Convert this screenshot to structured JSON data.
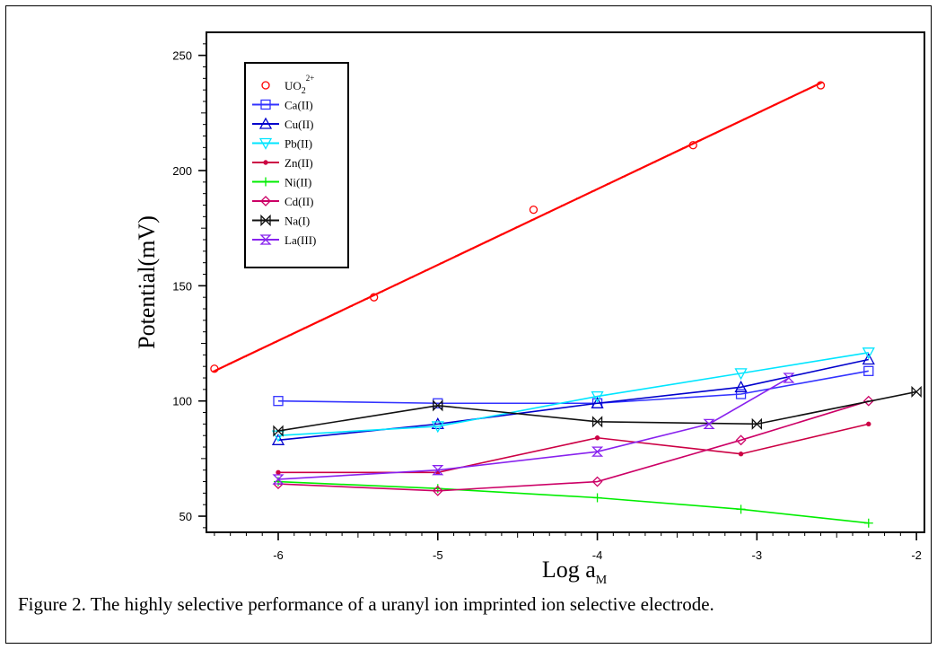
{
  "caption": "Figure 2.  The highly selective performance of a uranyl ion imprinted ion selective electrode.",
  "chart_data": {
    "type": "line",
    "title": "",
    "xlabel": "Log a",
    "xlabel_sub": "M",
    "ylabel": "Potential(mV)",
    "xlim": [
      -6.45,
      -1.95
    ],
    "ylim": [
      43,
      260
    ],
    "x_ticks": [
      -6,
      -5,
      -4,
      -3,
      -2
    ],
    "x_tick_labels": [
      "-6",
      "-5",
      "-4",
      "-3",
      "-2"
    ],
    "y_ticks": [
      50,
      100,
      150,
      200,
      250
    ],
    "y_tick_labels": [
      "50",
      "100",
      "150",
      "200",
      "250"
    ],
    "grid": false,
    "legend_position": "top-left",
    "series": [
      {
        "name": "UO",
        "name_sub": "2",
        "name_sup": "2+",
        "color": "#ff0000",
        "marker": "circle",
        "style": "markers-with-fit",
        "x": [
          -6.4,
          -5.4,
          -4.4,
          -3.4,
          -2.6
        ],
        "y": [
          114,
          145,
          183,
          211,
          237
        ],
        "fit_x": [
          -6.4,
          -2.6
        ],
        "fit_y": [
          113,
          238
        ]
      },
      {
        "name": "Ca(II)",
        "color": "#3333ff",
        "marker": "square",
        "x": [
          -6,
          -5,
          -4,
          -3.1,
          -2.3
        ],
        "y": [
          100,
          99,
          99,
          103,
          113
        ]
      },
      {
        "name": "Cu(II)",
        "color": "#0000cc",
        "marker": "triangle-up",
        "x": [
          -6,
          -5,
          -4,
          -3.1,
          -2.3
        ],
        "y": [
          83,
          90,
          99,
          106,
          118
        ]
      },
      {
        "name": "Pb(II)",
        "color": "#00e5ff",
        "marker": "triangle-down",
        "x": [
          -6,
          -5,
          -4,
          -3.1,
          -2.3
        ],
        "y": [
          85,
          89,
          102,
          112,
          121
        ]
      },
      {
        "name": "Zn(II)",
        "color": "#cc0044",
        "marker": "dot",
        "x": [
          -6,
          -5,
          -4,
          -3.1,
          -2.3
        ],
        "y": [
          69,
          69,
          84,
          77,
          90
        ]
      },
      {
        "name": "Ni(II)",
        "color": "#00ee00",
        "marker": "plus",
        "x": [
          -6,
          -5,
          -4,
          -3.1,
          -2.3
        ],
        "y": [
          65,
          62,
          58,
          53,
          47
        ]
      },
      {
        "name": "Cd(II)",
        "color": "#cc0066",
        "marker": "diamond",
        "x": [
          -6,
          -5,
          -4,
          -3.1,
          -2.3
        ],
        "y": [
          64,
          61,
          65,
          83,
          100
        ]
      },
      {
        "name": "Na(I)",
        "color": "#111111",
        "marker": "bowtie",
        "x": [
          -6,
          -5,
          -4,
          -3,
          -2
        ],
        "y": [
          87,
          98,
          91,
          90,
          104
        ]
      },
      {
        "name": "La(III)",
        "color": "#8822ee",
        "marker": "hourglass",
        "x": [
          -6,
          -5,
          -4,
          -3.3,
          -2.8
        ],
        "y": [
          66,
          70,
          78,
          90,
          110
        ]
      }
    ]
  }
}
